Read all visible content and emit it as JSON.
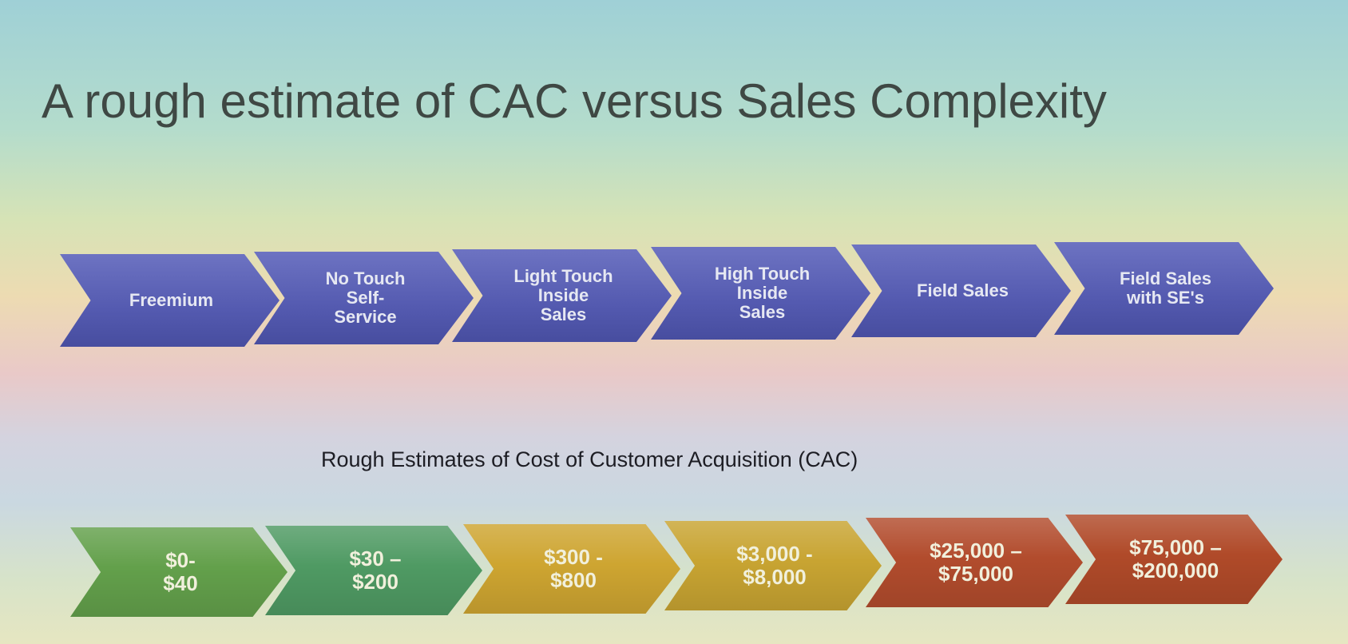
{
  "slide": {
    "title": "A rough estimate of CAC versus Sales Complexity",
    "subtitle": "Rough Estimates of Cost of Customer Acquisition (CAC)"
  },
  "stages": [
    {
      "label": "Freemium"
    },
    {
      "label": "No Touch\nSelf-\nService"
    },
    {
      "label": "Light Touch\nInside\nSales"
    },
    {
      "label": "High Touch\nInside\nSales"
    },
    {
      "label": "Field Sales"
    },
    {
      "label": "Field Sales\nwith SE's"
    }
  ],
  "costs": [
    {
      "label": "$0-\n$40",
      "color": "#63a04b"
    },
    {
      "label": "$30 –\n$200",
      "color": "#4f9a63"
    },
    {
      "label": "$300 -\n$800",
      "color": "#cea531"
    },
    {
      "label": "$3,000 -\n$8,000",
      "color": "#c8a432"
    },
    {
      "label": "$25,000 –\n$75,000",
      "color": "#b24c2d"
    },
    {
      "label": "$75,000 –\n$200,000",
      "color": "#b04a29"
    }
  ]
}
